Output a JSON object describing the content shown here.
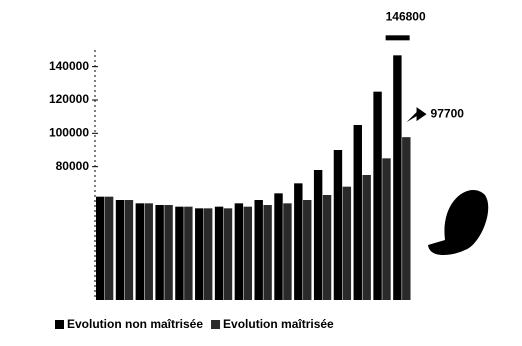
{
  "chart_data": {
    "type": "bar",
    "categories": [
      null,
      null,
      null,
      null,
      null,
      null,
      null,
      null,
      null,
      null,
      null,
      null,
      null,
      null,
      null,
      null
    ],
    "series": [
      {
        "name": "Evolution non maîtrisée",
        "color": "#000000",
        "values": [
          62000,
          60000,
          58000,
          57000,
          56000,
          55000,
          56000,
          58000,
          60000,
          64000,
          70000,
          78000,
          90000,
          105000,
          125000,
          146800
        ]
      },
      {
        "name": "Evolution maîtrisée",
        "color": "#2a2a2a",
        "values": [
          62000,
          60000,
          58000,
          57000,
          56000,
          55000,
          55000,
          56000,
          57000,
          58000,
          60000,
          63000,
          68000,
          75000,
          85000,
          97700
        ]
      }
    ],
    "ylim": [
      0,
      150000
    ],
    "yticks": [
      80000,
      100000,
      120000,
      140000
    ]
  }
}
